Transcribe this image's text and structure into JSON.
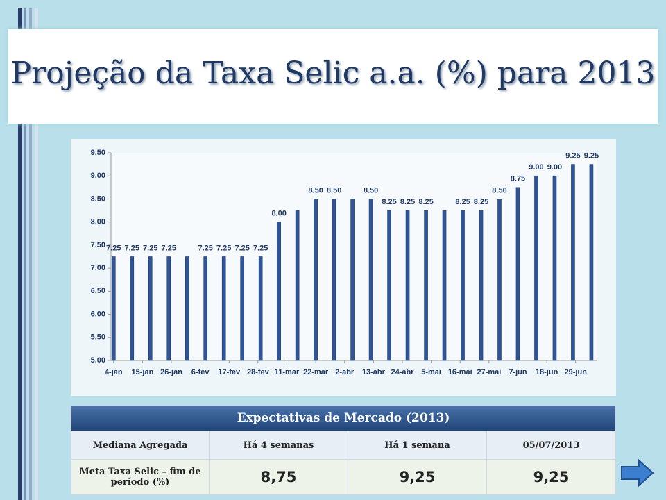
{
  "header": {
    "title": "Projeção da Taxa Selic a.a. (%) para 2013"
  },
  "chart_data": {
    "type": "bar",
    "x": [
      4,
      11,
      18,
      25,
      32,
      39,
      46,
      53,
      60,
      67,
      74,
      81,
      88,
      95,
      102,
      109,
      116,
      123,
      130,
      137,
      144,
      151,
      158,
      165,
      172,
      179,
      186
    ],
    "values": [
      7.25,
      7.25,
      7.25,
      7.25,
      7.25,
      7.25,
      7.25,
      7.25,
      7.25,
      8.0,
      8.25,
      8.5,
      8.5,
      8.5,
      8.5,
      8.25,
      8.25,
      8.25,
      8.25,
      8.25,
      8.25,
      8.5,
      8.75,
      9.0,
      9.0,
      9.25,
      9.25
    ],
    "value_labels": [
      "7.25",
      "7.25",
      "7.25",
      "7.25",
      null,
      "7.25",
      "7.25",
      "7.25",
      "7.25",
      "8.00",
      null,
      "8.50",
      "8.50",
      null,
      "8.50",
      "8.25",
      "8.25",
      "8.25",
      null,
      "8.25",
      "8.25",
      "8.50",
      "8.75",
      "9.00",
      "9.00",
      "9.25",
      "9.25"
    ],
    "color": "#2f5597",
    "xlim": [
      3,
      188
    ],
    "xticks": [
      {
        "value": 4,
        "label": "4-jan"
      },
      {
        "value": 15,
        "label": "15-jan"
      },
      {
        "value": 26,
        "label": "26-jan"
      },
      {
        "value": 37,
        "label": "6-fev"
      },
      {
        "value": 48,
        "label": "17-fev"
      },
      {
        "value": 59,
        "label": "28-fev"
      },
      {
        "value": 70,
        "label": "11-mar"
      },
      {
        "value": 81,
        "label": "22-mar"
      },
      {
        "value": 92,
        "label": "2-abr"
      },
      {
        "value": 103,
        "label": "13-abr"
      },
      {
        "value": 114,
        "label": "24-abr"
      },
      {
        "value": 125,
        "label": "5-mai"
      },
      {
        "value": 136,
        "label": "16-mai"
      },
      {
        "value": 147,
        "label": "27-mai"
      },
      {
        "value": 158,
        "label": "7-jun"
      },
      {
        "value": 169,
        "label": "18-jun"
      },
      {
        "value": 180,
        "label": "29-jun"
      }
    ],
    "ylim": [
      5,
      9.5
    ],
    "yticks": [
      {
        "value": 5,
        "label": "5.00"
      },
      {
        "value": 5.5,
        "label": "5.50"
      },
      {
        "value": 6,
        "label": "6.00"
      },
      {
        "value": 6.5,
        "label": "6.50"
      },
      {
        "value": 7,
        "label": "7.00"
      },
      {
        "value": 7.5,
        "label": "7.50"
      },
      {
        "value": 8,
        "label": "8.00"
      },
      {
        "value": 8.5,
        "label": "8.50"
      },
      {
        "value": 9,
        "label": "9.00"
      },
      {
        "value": 9.5,
        "label": "9.50"
      }
    ]
  },
  "table": {
    "title": "Expectativas de Mercado (2013)",
    "header": [
      "Mediana Agregada",
      "Há 4 semanas",
      "Há 1 semana",
      "05/07/2013"
    ],
    "rows": [
      [
        "Meta Taxa Selic – fim de período (%)",
        "8,75",
        "9,25",
        "9,25"
      ]
    ]
  }
}
